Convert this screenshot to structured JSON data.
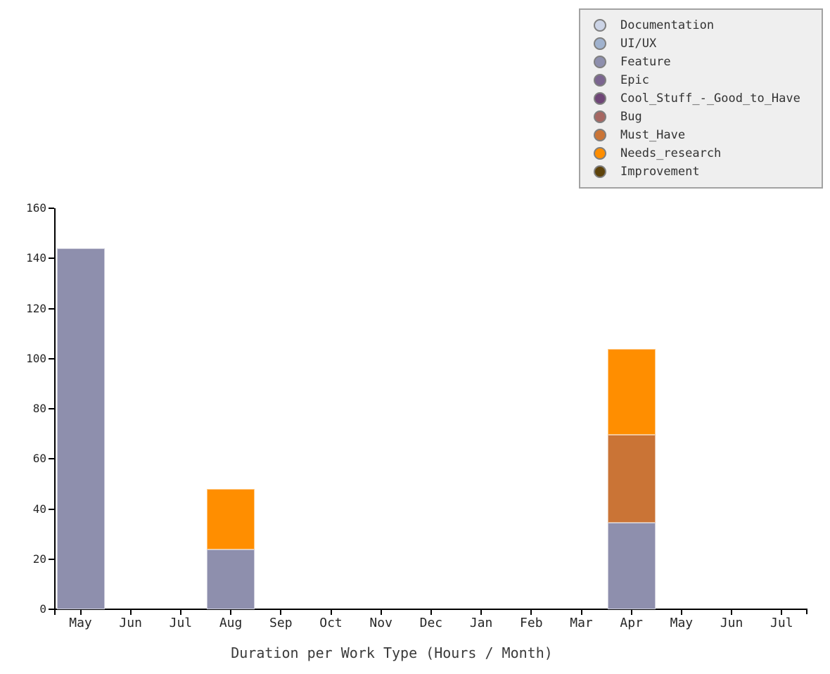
{
  "chart_data": {
    "type": "bar",
    "stacked": true,
    "title": "Duration per Work Type (Hours / Month)",
    "categories": [
      "May",
      "Jun",
      "Jul",
      "Aug",
      "Sep",
      "Oct",
      "Nov",
      "Dec",
      "Jan",
      "Feb",
      "Mar",
      "Apr",
      "May",
      "Jun",
      "Jul"
    ],
    "series": [
      {
        "name": "Documentation",
        "color": "#ccd4e6",
        "values": [
          0,
          0,
          0,
          0,
          0,
          0,
          0,
          0,
          0,
          0,
          0,
          0,
          0,
          0,
          0
        ]
      },
      {
        "name": "UI/UX",
        "color": "#a0b2ce",
        "values": [
          0,
          0,
          0,
          0,
          0,
          0,
          0,
          0,
          0,
          0,
          0,
          0,
          0,
          0,
          0
        ]
      },
      {
        "name": "Feature",
        "color": "#8e8fad",
        "values": [
          144,
          0,
          0,
          24,
          0,
          0,
          0,
          0,
          0,
          0,
          0,
          34.5,
          0,
          0,
          0
        ]
      },
      {
        "name": "Epic",
        "color": "#7b6590",
        "values": [
          0,
          0,
          0,
          0,
          0,
          0,
          0,
          0,
          0,
          0,
          0,
          0,
          0,
          0,
          0
        ]
      },
      {
        "name": "Cool_Stuff_-_Good_to_Have",
        "color": "#6f4677",
        "values": [
          0,
          0,
          0,
          0,
          0,
          0,
          0,
          0,
          0,
          0,
          0,
          0,
          0,
          0,
          0
        ]
      },
      {
        "name": "Bug",
        "color": "#a66762",
        "values": [
          0,
          0,
          0,
          0,
          0,
          0,
          0,
          0,
          0,
          0,
          0,
          0,
          0,
          0,
          0
        ]
      },
      {
        "name": "Must_Have",
        "color": "#ca7436",
        "values": [
          0,
          0,
          0,
          0,
          0,
          0,
          0,
          0,
          0,
          0,
          0,
          35,
          0,
          0,
          0
        ]
      },
      {
        "name": "Needs_research",
        "color": "#ff8e00",
        "values": [
          0,
          0,
          0,
          24,
          0,
          0,
          0,
          0,
          0,
          0,
          0,
          34.5,
          0,
          0,
          0
        ]
      },
      {
        "name": "Improvement",
        "color": "#5e430b",
        "values": [
          0,
          0,
          0,
          0,
          0,
          0,
          0,
          0,
          0,
          0,
          0,
          0,
          0,
          0,
          0
        ]
      }
    ],
    "xlabel": "Duration per Work Type (Hours / Month)",
    "ylabel": "",
    "ylim": [
      0,
      160
    ],
    "yticks": [
      0,
      20,
      40,
      60,
      80,
      100,
      120,
      140,
      160
    ],
    "legend_position": "top-right",
    "grid": false,
    "totals_by_visible_bar": {
      "May": 144,
      "Aug": 48,
      "Apr": 104
    },
    "colors": {
      "axis": "#000000",
      "tick_label": "#262626",
      "legend_background": "#efefef",
      "legend_border": "#a2a2a2",
      "legend_marker_ring": "#7f7f7f"
    }
  }
}
